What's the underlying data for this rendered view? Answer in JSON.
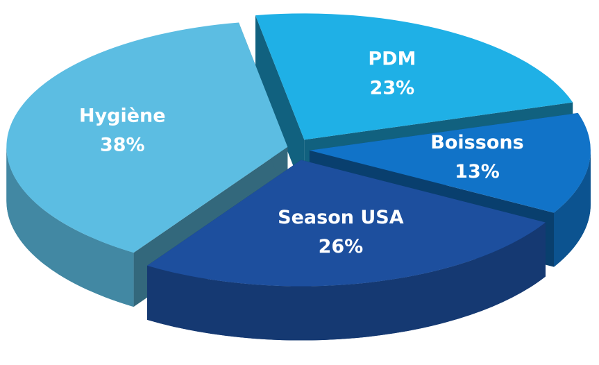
{
  "chart_data": {
    "type": "pie",
    "categories": [
      "PDM",
      "Boissons",
      "Season USA",
      "Hygiène"
    ],
    "values": [
      23,
      13,
      26,
      38
    ],
    "value_labels": [
      "23%",
      "13%",
      "26%",
      "38%"
    ],
    "colors": [
      "#1fb0e6",
      "#1173c8",
      "#1d4f9e",
      "#5cbde2"
    ]
  }
}
